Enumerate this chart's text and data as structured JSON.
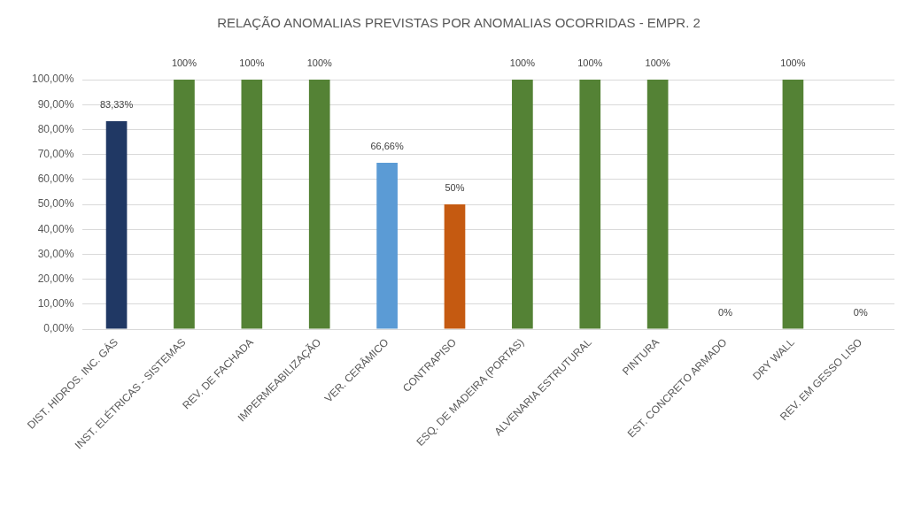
{
  "chart_data": {
    "type": "bar",
    "title": "RELAÇÃO ANOMALIAS PREVISTAS POR ANOMALIAS OCORRIDAS - EMPR. 2",
    "categories": [
      "DIST. HIDROS. INC. GÁS",
      "INST. ELÉTRICAS - SISTEMAS",
      "REV. DE FACHADA",
      "IMPERMEABILIZAÇÃO",
      "VER. CERÂMICO",
      "CONTRAPISO",
      "ESQ. DE MADEIRA (PORTAS)",
      "ALVENARIA ESTRUTURAL",
      "PINTURA",
      "EST. CONCRETO ARMADO",
      "DRY WALL",
      "REV. EM GESSO LISO"
    ],
    "values": [
      83.33,
      100,
      100,
      100,
      66.66,
      50,
      100,
      100,
      100,
      0,
      100,
      0
    ],
    "colors": [
      "#203864",
      "#548235",
      "#548235",
      "#548235",
      "#5b9bd5",
      "#c55a11",
      "#548235",
      "#548235",
      "#548235",
      "#548235",
      "#548235",
      "#548235"
    ],
    "value_labels": [
      "83,33%",
      "100%",
      "100%",
      "100%",
      "66,66%",
      "50%",
      "100%",
      "100%",
      "100%",
      "0%",
      "100%",
      "0%"
    ],
    "ylim": [
      0,
      100
    ],
    "yticks": [
      {
        "value": 0,
        "label": "0,00%"
      },
      {
        "value": 10,
        "label": "10,00%"
      },
      {
        "value": 20,
        "label": "20,00%"
      },
      {
        "value": 30,
        "label": "30,00%"
      },
      {
        "value": 40,
        "label": "40,00%"
      },
      {
        "value": 50,
        "label": "50,00%"
      },
      {
        "value": 60,
        "label": "60,00%"
      },
      {
        "value": 70,
        "label": "70,00%"
      },
      {
        "value": 80,
        "label": "80,00%"
      },
      {
        "value": 90,
        "label": "90,00%"
      },
      {
        "value": 100,
        "label": "100,00%"
      }
    ],
    "grid": "y"
  }
}
